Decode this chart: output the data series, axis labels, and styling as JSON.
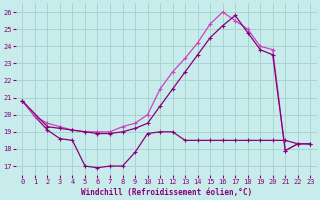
{
  "xlabel": "Windchill (Refroidissement éolien,°C)",
  "xlim": [
    -0.5,
    23.5
  ],
  "ylim": [
    16.5,
    26.5
  ],
  "yticks": [
    17,
    18,
    19,
    20,
    21,
    22,
    23,
    24,
    25,
    26
  ],
  "xticks": [
    0,
    1,
    2,
    3,
    4,
    5,
    6,
    7,
    8,
    9,
    10,
    11,
    12,
    13,
    14,
    15,
    16,
    17,
    18,
    19,
    20,
    21,
    22,
    23
  ],
  "bg": "#c8ecec",
  "grid_color": "#a8d4d4",
  "col1": "#880077",
  "col2": "#cc44bb",
  "s1x": [
    0,
    1,
    2,
    3,
    4,
    5,
    6,
    7,
    8,
    9,
    10,
    11,
    12,
    13,
    14,
    15,
    16,
    17,
    18,
    19,
    20,
    21,
    22,
    23
  ],
  "s1y": [
    20.8,
    19.9,
    19.1,
    18.6,
    18.5,
    17.0,
    16.9,
    17.0,
    17.0,
    17.8,
    18.9,
    19.0,
    19.0,
    18.5,
    18.5,
    18.5,
    18.5,
    18.5,
    18.5,
    18.5,
    18.5,
    18.5,
    18.3,
    18.3
  ],
  "s2x": [
    0,
    1,
    2,
    3,
    4,
    5,
    6,
    7,
    8,
    9,
    10,
    11,
    12,
    13,
    14,
    15,
    16,
    17,
    18,
    19,
    20,
    21,
    22,
    23
  ],
  "s2y": [
    20.8,
    19.9,
    19.5,
    19.3,
    19.1,
    19.0,
    19.0,
    19.0,
    19.3,
    19.5,
    20.0,
    21.5,
    22.5,
    23.3,
    24.2,
    25.3,
    26.0,
    25.5,
    25.0,
    24.0,
    23.8,
    17.9,
    18.3,
    18.3
  ],
  "s3x": [
    0,
    2,
    3,
    4,
    5,
    6,
    7,
    8,
    9,
    10,
    11,
    12,
    13,
    14,
    15,
    16,
    17,
    18,
    19,
    20,
    21,
    22,
    23
  ],
  "s3y": [
    20.8,
    19.3,
    19.2,
    19.1,
    19.0,
    18.9,
    18.9,
    19.0,
    19.2,
    19.5,
    20.5,
    21.5,
    22.5,
    23.5,
    24.5,
    25.2,
    25.8,
    24.8,
    23.8,
    23.5,
    17.9,
    18.3,
    18.3
  ]
}
